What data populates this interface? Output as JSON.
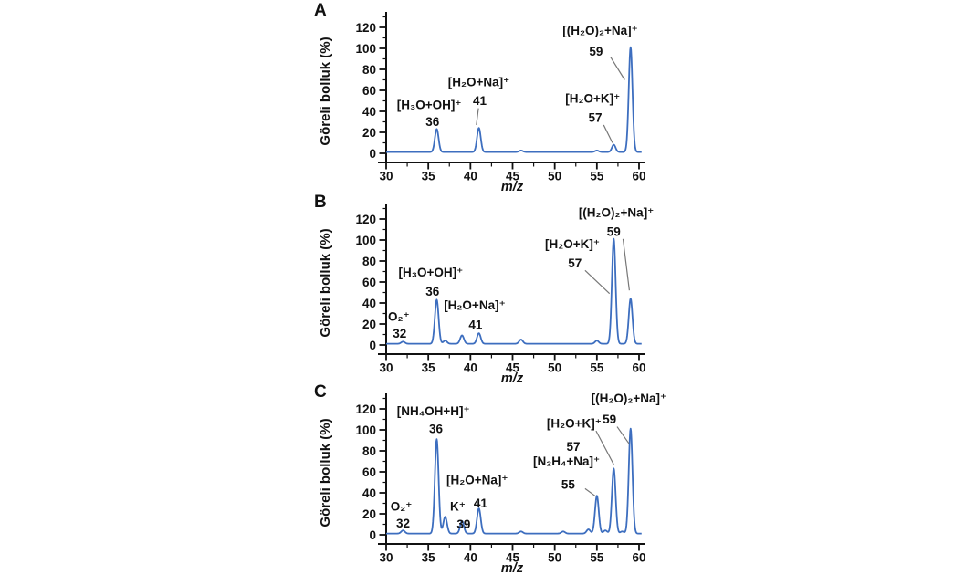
{
  "figure": {
    "background": "#ffffff",
    "line_color": "#3d6ebf",
    "leader_color": "#777777",
    "text_color": "#111111",
    "axis_color": "#111111"
  },
  "chart_data": [
    {
      "type": "line",
      "panel": "A",
      "title": "",
      "xlabel": "m/z",
      "ylabel": "Göreli bolluk (%)",
      "xlim": [
        30,
        60
      ],
      "ylim": [
        0,
        120
      ],
      "xticks": [
        30,
        35,
        40,
        45,
        50,
        55,
        60
      ],
      "yticks": [
        0,
        20,
        40,
        60,
        80,
        100,
        120
      ],
      "x_minor_step": 2.5,
      "y_minor_step": 10,
      "grid": false,
      "baseline_pct": 1.2,
      "peak_sigma_mz": 0.22,
      "peaks": [
        {
          "mz": 36,
          "intensity": 22
        },
        {
          "mz": 41,
          "intensity": 23
        },
        {
          "mz": 46,
          "intensity": 1.5
        },
        {
          "mz": 55,
          "intensity": 1.5
        },
        {
          "mz": 57,
          "intensity": 7
        },
        {
          "mz": 59,
          "intensity": 100
        }
      ],
      "annotations": [
        {
          "text": "[H₃O+OH]⁺",
          "x": 35.1,
          "y": 46
        },
        {
          "text": "36",
          "x": 35.5,
          "y": 30
        },
        {
          "text": "[H₂O+Na]⁺",
          "x": 41.0,
          "y": 68
        },
        {
          "text": "41",
          "x": 41.1,
          "y": 50
        },
        {
          "text": "[H₂O+K]⁺",
          "x": 54.5,
          "y": 52
        },
        {
          "text": "57",
          "x": 54.8,
          "y": 34
        },
        {
          "text": "[(H₂O)₂+Na]⁺",
          "x": 55.4,
          "y": 117
        },
        {
          "text": "59",
          "x": 54.9,
          "y": 97
        }
      ],
      "leaders": [
        {
          "x1": 40.95,
          "y1": 43,
          "x2": 40.7,
          "y2": 27
        },
        {
          "x1": 55.8,
          "y1": 27,
          "x2": 56.85,
          "y2": 10
        },
        {
          "x1": 56.6,
          "y1": 92,
          "x2": 58.3,
          "y2": 70
        }
      ]
    },
    {
      "type": "line",
      "panel": "B",
      "title": "",
      "xlabel": "m/z",
      "ylabel": "Göreli bolluk (%)",
      "xlim": [
        30,
        60
      ],
      "ylim": [
        0,
        120
      ],
      "xticks": [
        30,
        35,
        40,
        45,
        50,
        55,
        60
      ],
      "yticks": [
        0,
        20,
        40,
        60,
        80,
        100,
        120
      ],
      "x_minor_step": 2.5,
      "y_minor_step": 10,
      "grid": false,
      "baseline_pct": 1.2,
      "peak_sigma_mz": 0.22,
      "peaks": [
        {
          "mz": 32,
          "intensity": 2
        },
        {
          "mz": 36,
          "intensity": 42
        },
        {
          "mz": 37,
          "intensity": 3
        },
        {
          "mz": 39,
          "intensity": 8
        },
        {
          "mz": 41,
          "intensity": 10
        },
        {
          "mz": 46,
          "intensity": 4
        },
        {
          "mz": 55,
          "intensity": 3
        },
        {
          "mz": 57,
          "intensity": 100
        },
        {
          "mz": 59,
          "intensity": 43
        }
      ],
      "annotations": [
        {
          "text": "O₂⁺",
          "x": 31.5,
          "y": 27
        },
        {
          "text": "32",
          "x": 31.6,
          "y": 11
        },
        {
          "text": "[H₃O+OH]⁺",
          "x": 35.3,
          "y": 69
        },
        {
          "text": "36",
          "x": 35.5,
          "y": 51
        },
        {
          "text": "[H₂O+Na]⁺",
          "x": 40.5,
          "y": 38
        },
        {
          "text": "41",
          "x": 40.6,
          "y": 19
        },
        {
          "text": "[H₂O+K]⁺",
          "x": 52.1,
          "y": 96
        },
        {
          "text": "57",
          "x": 52.4,
          "y": 78
        },
        {
          "text": "[(H₂O)₂+Na]⁺",
          "x": 57.3,
          "y": 126
        },
        {
          "text": "59",
          "x": 57.0,
          "y": 108
        }
      ],
      "leaders": [
        {
          "x1": 53.6,
          "y1": 71,
          "x2": 56.5,
          "y2": 49
        },
        {
          "x1": 58.1,
          "y1": 101,
          "x2": 58.85,
          "y2": 52
        }
      ]
    },
    {
      "type": "line",
      "panel": "C",
      "title": "",
      "xlabel": "m/z",
      "ylabel": "Göreli bolluk (%)",
      "xlim": [
        30,
        60
      ],
      "ylim": [
        0,
        120
      ],
      "xticks": [
        30,
        35,
        40,
        45,
        50,
        55,
        60
      ],
      "yticks": [
        0,
        20,
        40,
        60,
        80,
        100,
        120
      ],
      "x_minor_step": 2.5,
      "y_minor_step": 10,
      "grid": false,
      "baseline_pct": 1.2,
      "peak_sigma_mz": 0.22,
      "peaks": [
        {
          "mz": 32,
          "intensity": 3
        },
        {
          "mz": 36,
          "intensity": 90
        },
        {
          "mz": 37,
          "intensity": 16
        },
        {
          "mz": 39,
          "intensity": 12
        },
        {
          "mz": 41,
          "intensity": 24
        },
        {
          "mz": 46,
          "intensity": 2
        },
        {
          "mz": 51,
          "intensity": 2
        },
        {
          "mz": 54,
          "intensity": 4
        },
        {
          "mz": 55,
          "intensity": 36
        },
        {
          "mz": 56,
          "intensity": 3
        },
        {
          "mz": 57,
          "intensity": 62
        },
        {
          "mz": 58,
          "intensity": 2
        },
        {
          "mz": 59,
          "intensity": 100
        }
      ],
      "annotations": [
        {
          "text": "O₂⁺",
          "x": 31.8,
          "y": 27
        },
        {
          "text": "32",
          "x": 32.0,
          "y": 11
        },
        {
          "text": "[NH₄OH+H]⁺",
          "x": 35.6,
          "y": 118
        },
        {
          "text": "36",
          "x": 35.9,
          "y": 101
        },
        {
          "text": "K⁺",
          "x": 38.5,
          "y": 27
        },
        {
          "text": "39",
          "x": 39.2,
          "y": 10
        },
        {
          "text": "[H₂O+Na]⁺",
          "x": 40.8,
          "y": 52
        },
        {
          "text": "41",
          "x": 41.2,
          "y": 30
        },
        {
          "text": "[N₂H₄+Na]⁺",
          "x": 51.4,
          "y": 70
        },
        {
          "text": "55",
          "x": 51.6,
          "y": 48
        },
        {
          "text": "[H₂O+K]⁺",
          "x": 52.3,
          "y": 106
        },
        {
          "text": "57",
          "x": 52.2,
          "y": 84
        },
        {
          "text": "[(H₂O)₂+Na]⁺",
          "x": 58.8,
          "y": 130
        },
        {
          "text": "59",
          "x": 56.5,
          "y": 110
        }
      ],
      "leaders": [
        {
          "x1": 53.6,
          "y1": 44,
          "x2": 54.8,
          "y2": 37
        },
        {
          "x1": 54.9,
          "y1": 99,
          "x2": 57.0,
          "y2": 67
        },
        {
          "x1": 57.4,
          "y1": 103,
          "x2": 58.8,
          "y2": 87
        }
      ]
    }
  ]
}
